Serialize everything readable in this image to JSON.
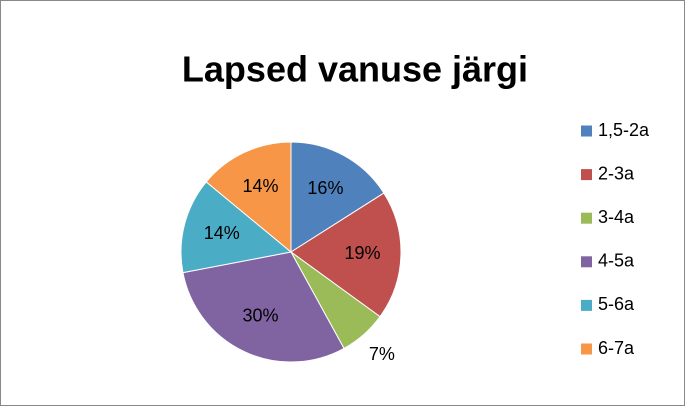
{
  "chart_data": {
    "type": "pie",
    "title": "Lapsed vanuse järgi",
    "categories": [
      "1,5-2a",
      "2-3a",
      "3-4a",
      "4-5a",
      "5-6a",
      "6-7a"
    ],
    "values": [
      16,
      19,
      7,
      30,
      14,
      14
    ],
    "value_labels": [
      "16%",
      "19%",
      "7%",
      "30%",
      "14%",
      "14%"
    ],
    "colors": [
      "#4F81BD",
      "#C0504D",
      "#9BBB59",
      "#8064A2",
      "#4BACC6",
      "#F79646"
    ],
    "legend": "right"
  }
}
